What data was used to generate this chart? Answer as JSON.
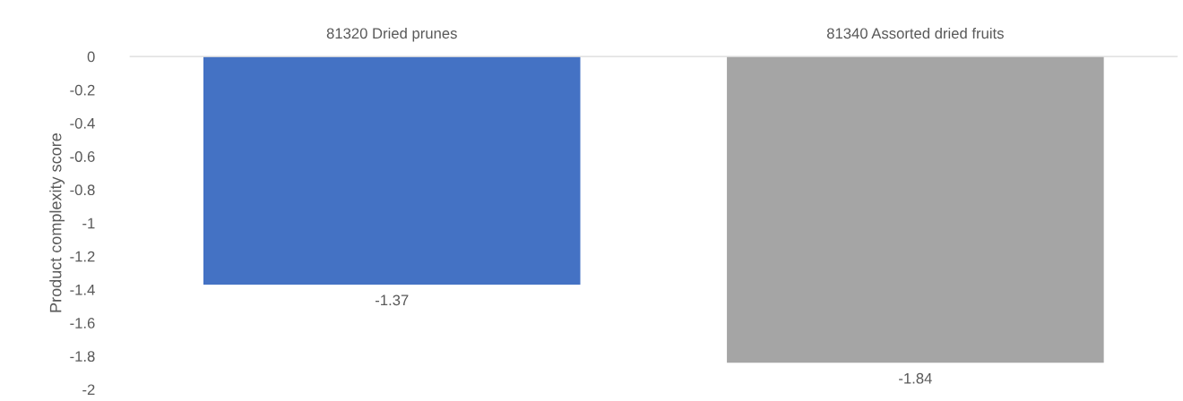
{
  "chart_data": {
    "type": "bar",
    "categories": [
      "81320 Dried prunes",
      "81340 Assorted dried fruits"
    ],
    "values": [
      -1.37,
      -1.84
    ],
    "colors": [
      "#4472c4",
      "#a5a5a5"
    ],
    "ylabel": "Product complexity score",
    "ylim": [
      -2,
      0
    ],
    "yticks": [
      0,
      -0.2,
      -0.4,
      -0.6,
      -0.8,
      -1,
      -1.2,
      -1.4,
      -1.6,
      -1.8,
      -2
    ],
    "data_labels": true,
    "grid": false,
    "legend": false
  }
}
